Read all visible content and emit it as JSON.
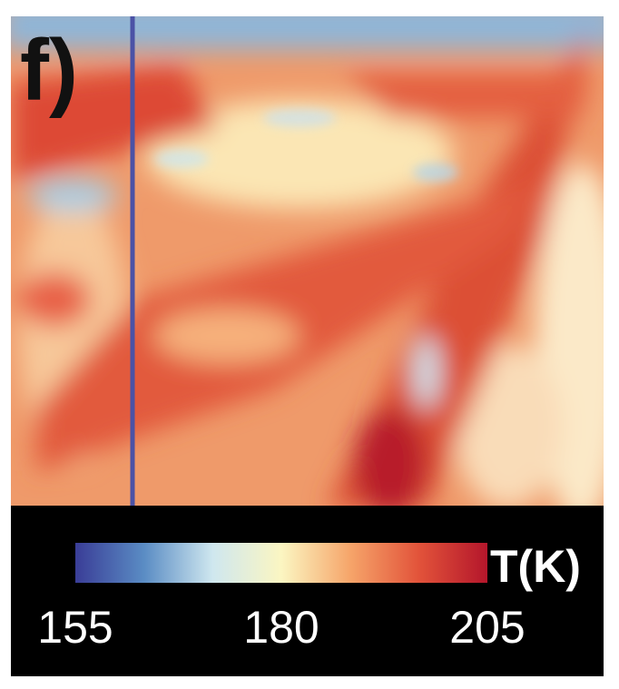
{
  "chart_data": {
    "type": "heatmap",
    "panel_label": "f)",
    "colorbar": {
      "label": "T(K)",
      "clim": [
        155,
        205
      ],
      "ticks": [
        155,
        180,
        205
      ],
      "colormap": [
        "#3a3d97",
        "#5a8cc4",
        "#cfe7ef",
        "#fbf6c2",
        "#f6a56a",
        "#e2533a",
        "#b4162b"
      ]
    }
  }
}
